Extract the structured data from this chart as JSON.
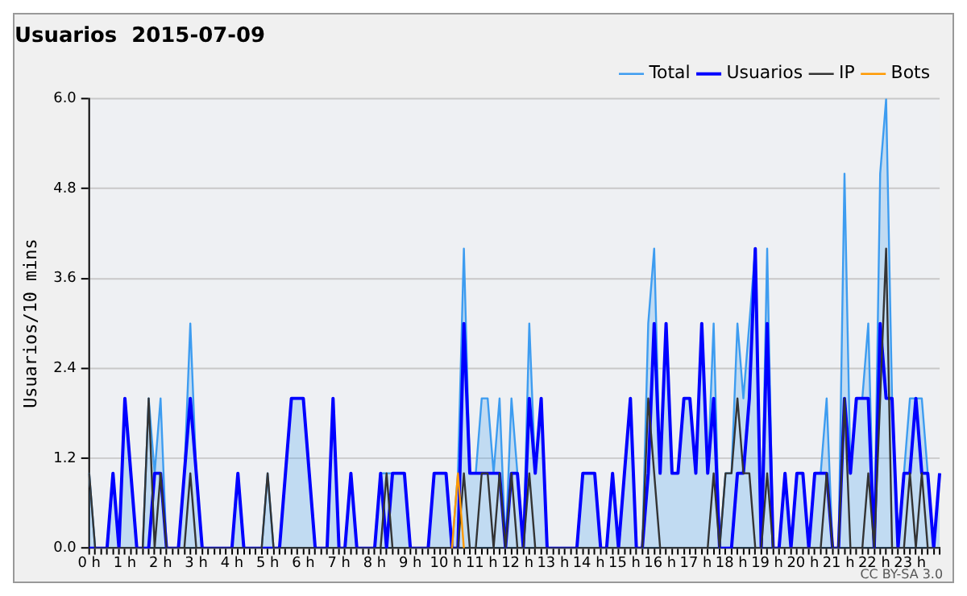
{
  "chart_data": {
    "type": "line",
    "title": "Usuarios  2015-07-09",
    "ylabel": "Usuarios/10 mins",
    "categories": [
      "0 h",
      null,
      null,
      null,
      null,
      null,
      "1 h",
      null,
      null,
      null,
      null,
      null,
      "2 h",
      null,
      null,
      null,
      null,
      null,
      "3 h",
      null,
      null,
      null,
      null,
      null,
      "4 h",
      null,
      null,
      null,
      null,
      null,
      "5 h",
      null,
      null,
      null,
      null,
      null,
      "6 h",
      null,
      null,
      null,
      null,
      null,
      "7 h",
      null,
      null,
      null,
      null,
      null,
      "8 h",
      null,
      null,
      null,
      null,
      null,
      "9 h",
      null,
      null,
      null,
      null,
      null,
      "10 h",
      null,
      null,
      null,
      null,
      null,
      "11 h",
      null,
      null,
      null,
      null,
      null,
      "12 h",
      null,
      null,
      null,
      null,
      null,
      "13 h",
      null,
      null,
      null,
      null,
      null,
      "14 h",
      null,
      null,
      null,
      null,
      null,
      "15 h",
      null,
      null,
      null,
      null,
      null,
      "16 h",
      null,
      null,
      null,
      null,
      null,
      "17 h",
      null,
      null,
      null,
      null,
      null,
      "18 h",
      null,
      null,
      null,
      null,
      null,
      "19 h",
      null,
      null,
      null,
      null,
      null,
      "20 h",
      null,
      null,
      null,
      null,
      null,
      "21 h",
      null,
      null,
      null,
      null,
      null,
      "22 h",
      null,
      null,
      null,
      null,
      null,
      "23 h",
      null,
      null,
      null,
      null,
      null
    ],
    "series": [
      {
        "name": "Total",
        "type": "area",
        "color": "#3d9cf0",
        "values": [
          1,
          0,
          0,
          0,
          1,
          0,
          2,
          1,
          0,
          0,
          2,
          1,
          2,
          0,
          0,
          0,
          1,
          3,
          1,
          0,
          0,
          0,
          0,
          0,
          0,
          1,
          0,
          0,
          0,
          0,
          1,
          0,
          0,
          1,
          2,
          2,
          2,
          1,
          0,
          0,
          0,
          2,
          0,
          0,
          1,
          0,
          0,
          0,
          0,
          1,
          1,
          1,
          1,
          1,
          0,
          0,
          0,
          0,
          1,
          1,
          1,
          0,
          1,
          4,
          1,
          1,
          2,
          2,
          1,
          2,
          0,
          2,
          1,
          0,
          3,
          1,
          2,
          0,
          0,
          0,
          0,
          0,
          0,
          1,
          1,
          1,
          0,
          0,
          1,
          0,
          1,
          2,
          0,
          0,
          3,
          4,
          1,
          3,
          1,
          1,
          2,
          2,
          1,
          3,
          1,
          3,
          0,
          1,
          1,
          3,
          2,
          3,
          4,
          0,
          4,
          0,
          0,
          1,
          0,
          1,
          1,
          0,
          1,
          1,
          2,
          0,
          0,
          5,
          1,
          2,
          2,
          3,
          0,
          5,
          6,
          2,
          0,
          1,
          2,
          2,
          2,
          1,
          0,
          1
        ]
      },
      {
        "name": "Usuarios",
        "color": "#0000ff",
        "values": [
          0,
          0,
          0,
          0,
          1,
          0,
          2,
          1,
          0,
          0,
          0,
          1,
          1,
          0,
          0,
          0,
          1,
          2,
          1,
          0,
          0,
          0,
          0,
          0,
          0,
          1,
          0,
          0,
          0,
          0,
          0,
          0,
          0,
          1,
          2,
          2,
          2,
          1,
          0,
          0,
          0,
          2,
          0,
          0,
          1,
          0,
          0,
          0,
          0,
          1,
          0,
          1,
          1,
          1,
          0,
          0,
          0,
          0,
          1,
          1,
          1,
          0,
          0,
          3,
          1,
          1,
          1,
          1,
          1,
          1,
          0,
          1,
          1,
          0,
          2,
          1,
          2,
          0,
          0,
          0,
          0,
          0,
          0,
          1,
          1,
          1,
          0,
          0,
          1,
          0,
          1,
          2,
          0,
          0,
          1,
          3,
          1,
          3,
          1,
          1,
          2,
          2,
          1,
          3,
          1,
          2,
          0,
          0,
          0,
          1,
          1,
          2,
          4,
          0,
          3,
          0,
          0,
          1,
          0,
          1,
          1,
          0,
          1,
          1,
          1,
          0,
          0,
          2,
          1,
          2,
          2,
          2,
          0,
          3,
          2,
          2,
          0,
          1,
          1,
          2,
          1,
          1,
          0,
          1
        ]
      },
      {
        "name": "IP",
        "color": "#333333",
        "values": [
          1,
          0,
          0,
          0,
          0,
          0,
          0,
          0,
          0,
          0,
          2,
          0,
          1,
          0,
          0,
          0,
          0,
          1,
          0,
          0,
          0,
          0,
          0,
          0,
          0,
          0,
          0,
          0,
          0,
          0,
          1,
          0,
          0,
          0,
          0,
          0,
          0,
          0,
          0,
          0,
          0,
          0,
          0,
          0,
          0,
          0,
          0,
          0,
          0,
          0,
          1,
          0,
          0,
          0,
          0,
          0,
          0,
          0,
          0,
          0,
          0,
          0,
          0,
          1,
          0,
          0,
          1,
          1,
          0,
          1,
          0,
          1,
          0,
          0,
          1,
          0,
          0,
          0,
          0,
          0,
          0,
          0,
          0,
          0,
          0,
          0,
          0,
          0,
          0,
          0,
          0,
          0,
          0,
          0,
          2,
          1,
          0,
          0,
          0,
          0,
          0,
          0,
          0,
          0,
          0,
          1,
          0,
          1,
          1,
          2,
          1,
          1,
          0,
          0,
          1,
          0,
          0,
          0,
          0,
          0,
          0,
          0,
          0,
          0,
          1,
          0,
          0,
          2,
          0,
          0,
          0,
          1,
          0,
          2,
          4,
          0,
          0,
          0,
          1,
          0,
          1,
          0,
          0,
          0
        ]
      },
      {
        "name": "Bots",
        "color": "#ff9900",
        "values": [
          null,
          null,
          null,
          null,
          null,
          null,
          null,
          null,
          null,
          null,
          null,
          null,
          null,
          null,
          null,
          null,
          null,
          null,
          null,
          null,
          null,
          null,
          null,
          null,
          null,
          null,
          null,
          null,
          null,
          null,
          null,
          null,
          null,
          null,
          null,
          null,
          null,
          null,
          null,
          null,
          null,
          null,
          null,
          null,
          null,
          null,
          null,
          null,
          null,
          null,
          null,
          null,
          null,
          null,
          null,
          null,
          null,
          null,
          null,
          null,
          null,
          0,
          1,
          0,
          null,
          null,
          null,
          null,
          null,
          null,
          null,
          null,
          null,
          null,
          null,
          null,
          null,
          null,
          null,
          null,
          null,
          null,
          null,
          null,
          null,
          null,
          null,
          null,
          null,
          null,
          null,
          null,
          null,
          null,
          null,
          null,
          null,
          null,
          null,
          null,
          null,
          null,
          null,
          null,
          null,
          null,
          null,
          null,
          null,
          null,
          null,
          null,
          null,
          null,
          null,
          null,
          null,
          null,
          null,
          null,
          null,
          null,
          null,
          null,
          null,
          null,
          null,
          null,
          null,
          null,
          null,
          null,
          null,
          null,
          null,
          null,
          null,
          null,
          null,
          null,
          null,
          null,
          null,
          null
        ]
      }
    ],
    "ylim": [
      0,
      6
    ],
    "yticks": [
      {
        "value": 0,
        "label": "0.0"
      },
      1.2,
      2.4,
      3.6,
      4.8,
      {
        "value": 6,
        "label": "6.0"
      }
    ],
    "grid": "y",
    "legend": "top right",
    "marker": "none",
    "annotations": [
      "CC BY-SA 3.0"
    ]
  }
}
